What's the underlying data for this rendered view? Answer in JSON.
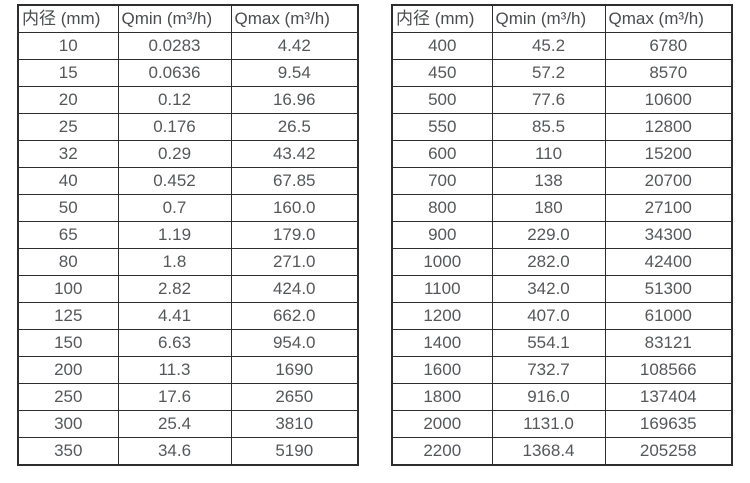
{
  "colors": {
    "background": "#ffffff",
    "border": "#2d2d2d",
    "header_text": "#4a4c4f",
    "cell_text": "#55575a"
  },
  "chart_data": [
    {
      "type": "table",
      "title": "",
      "columns": [
        "内径 (mm)",
        "Qmin (m³/h)",
        "Qmax (m³/h)"
      ],
      "rows": [
        [
          "10",
          "0.0283",
          "4.42"
        ],
        [
          "15",
          "0.0636",
          "9.54"
        ],
        [
          "20",
          "0.12",
          "16.96"
        ],
        [
          "25",
          "0.176",
          "26.5"
        ],
        [
          "32",
          "0.29",
          "43.42"
        ],
        [
          "40",
          "0.452",
          "67.85"
        ],
        [
          "50",
          "0.7",
          "160.0"
        ],
        [
          "65",
          "1.19",
          "179.0"
        ],
        [
          "80",
          "1.8",
          "271.0"
        ],
        [
          "100",
          "2.82",
          "424.0"
        ],
        [
          "125",
          "4.41",
          "662.0"
        ],
        [
          "150",
          "6.63",
          "954.0"
        ],
        [
          "200",
          "11.3",
          "1690"
        ],
        [
          "250",
          "17.6",
          "2650"
        ],
        [
          "300",
          "25.4",
          "3810"
        ],
        [
          "350",
          "34.6",
          "5190"
        ]
      ]
    },
    {
      "type": "table",
      "title": "",
      "columns": [
        "内径 (mm)",
        "Qmin (m³/h)",
        "Qmax (m³/h)"
      ],
      "rows": [
        [
          "400",
          "45.2",
          "6780"
        ],
        [
          "450",
          "57.2",
          "8570"
        ],
        [
          "500",
          "77.6",
          "10600"
        ],
        [
          "550",
          "85.5",
          "12800"
        ],
        [
          "600",
          "110",
          "15200"
        ],
        [
          "700",
          "138",
          "20700"
        ],
        [
          "800",
          "180",
          "27100"
        ],
        [
          "900",
          "229.0",
          "34300"
        ],
        [
          "1000",
          "282.0",
          "42400"
        ],
        [
          "1100",
          "342.0",
          "51300"
        ],
        [
          "1200",
          "407.0",
          "61000"
        ],
        [
          "1400",
          "554.1",
          "83121"
        ],
        [
          "1600",
          "732.7",
          "108566"
        ],
        [
          "1800",
          "916.0",
          "137404"
        ],
        [
          "2000",
          "1131.0",
          "169635"
        ],
        [
          "2200",
          "1368.4",
          "205258"
        ]
      ]
    }
  ]
}
